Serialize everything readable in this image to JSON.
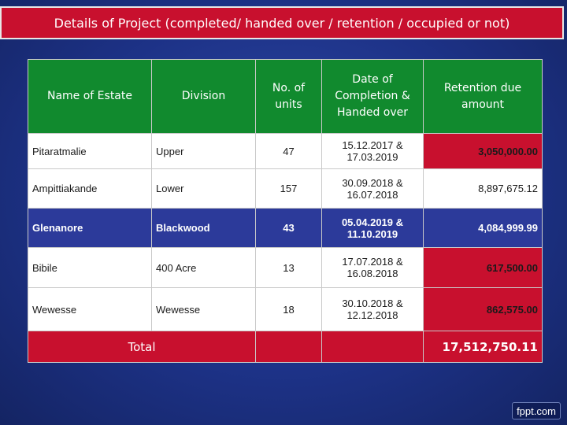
{
  "title": "Details of Project (completed/ handed over / retention / occupied or not)",
  "table": {
    "headers": {
      "name": "Name of Estate",
      "division": "Division",
      "units": "No. of units",
      "date": "Date of Completion & Handed over",
      "retention": "Retention due amount"
    },
    "rows": [
      {
        "name": "Pitaratmalie",
        "division": "Upper",
        "units": "47",
        "date": "15.12.2017 & 17.03.2019",
        "retention": "3,050,000.00"
      },
      {
        "name": "Ampittiakande",
        "division": "Lower",
        "units": "157",
        "date": "30.09.2018 & 16.07.2018",
        "retention": "8,897,675.12"
      },
      {
        "name": "Glenanore",
        "division": "Blackwood",
        "units": "43",
        "date": "05.04.2019  & 11.10.2019",
        "retention": "4,084,999.99"
      },
      {
        "name": "Bibile",
        "division": "400 Acre",
        "units": "13",
        "date": "17.07.2018 & 16.08.2018",
        "retention": "617,500.00"
      },
      {
        "name": "Wewesse",
        "division": "Wewesse",
        "units": "18",
        "date": "30.10.2018 & 12.12.2018",
        "retention": "862,575.00"
      }
    ],
    "total_label": "Total",
    "total_value": "17,512,750.11"
  },
  "logo": "fppt.com",
  "colors": {
    "background": "#1d3287",
    "title_bar": "#c8102e",
    "header": "#118a2e",
    "highlight_row": "#2c3a9a",
    "highlight_cell": "#c8102e"
  }
}
